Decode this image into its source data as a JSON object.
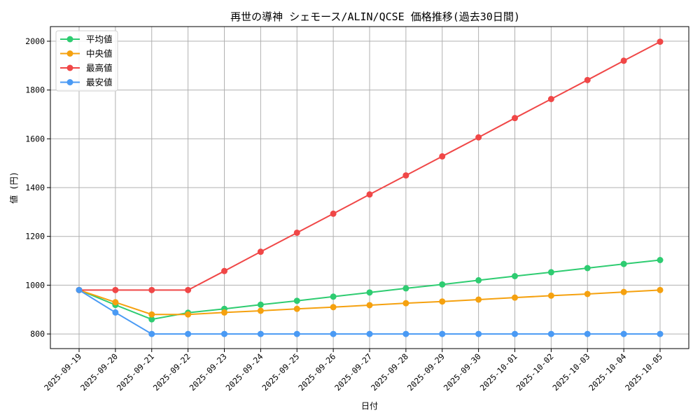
{
  "chart_data": {
    "type": "line",
    "title": "再世の導神 シェモース/ALIN/QCSE 価格推移(過去30日間)",
    "xlabel": "日付",
    "ylabel": "値 (円)",
    "categories": [
      "2025-09-19",
      "2025-09-20",
      "2025-09-21",
      "2025-09-22",
      "2025-09-23",
      "2025-09-24",
      "2025-09-25",
      "2025-09-26",
      "2025-09-27",
      "2025-09-28",
      "2025-09-29",
      "2025-09-30",
      "2025-10-01",
      "2025-10-02",
      "2025-10-03",
      "2025-10-04",
      "2025-10-05"
    ],
    "yticks": [
      800,
      1000,
      1200,
      1400,
      1600,
      1800,
      2000
    ],
    "ylim": [
      740,
      2060
    ],
    "grid": true,
    "legend_position": "top-left",
    "series": [
      {
        "name": "平均値",
        "color": "#2ecc71",
        "values": [
          980,
          919,
          860,
          887,
          903,
          920,
          936,
          953,
          970,
          987,
          1003,
          1020,
          1037,
          1053,
          1070,
          1087,
          1103
        ]
      },
      {
        "name": "中央値",
        "color": "#f5a10f",
        "values": [
          980,
          930,
          880,
          880,
          888,
          895,
          903,
          910,
          918,
          926,
          933,
          941,
          949,
          957,
          964,
          972,
          980
        ]
      },
      {
        "name": "最高値",
        "color": "#f04747",
        "values": [
          980,
          980,
          980,
          980,
          1058,
          1137,
          1215,
          1293,
          1372,
          1450,
          1528,
          1606,
          1685,
          1763,
          1841,
          1920,
          1998
        ]
      },
      {
        "name": "最安値",
        "color": "#4a9af4",
        "values": [
          980,
          888,
          800,
          800,
          800,
          800,
          800,
          800,
          800,
          800,
          800,
          800,
          800,
          800,
          800,
          800,
          800
        ]
      }
    ]
  }
}
